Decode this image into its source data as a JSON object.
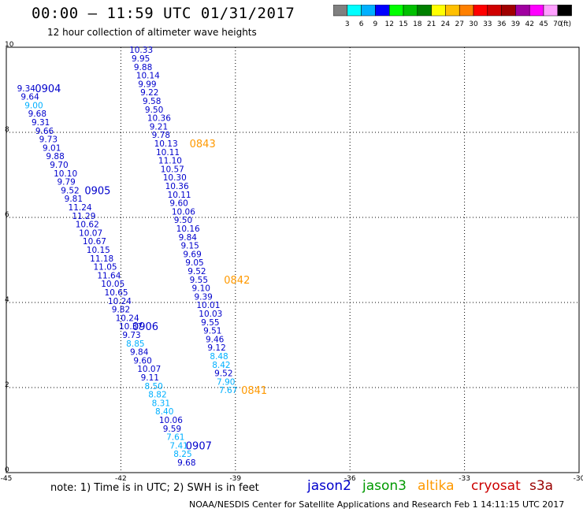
{
  "header": {
    "title": "00:00 – 11:59 UTC 01/31/2017",
    "subtitle": "12 hour collection of altimeter wave heights"
  },
  "colorbar": {
    "labels": [
      "3",
      "6",
      "9",
      "12",
      "15",
      "18",
      "21",
      "24",
      "27",
      "30",
      "33",
      "36",
      "39",
      "42",
      "45",
      "70"
    ],
    "unit": "(ft)",
    "colors": [
      "#808080",
      "#00ffff",
      "#00b0ff",
      "#0000ff",
      "#00ff00",
      "#00c000",
      "#008000",
      "#ffff00",
      "#ffc000",
      "#ff8000",
      "#ff0000",
      "#d00000",
      "#a00000",
      "#a000a0",
      "#ff00ff",
      "#ffa0ff",
      "#000000"
    ]
  },
  "note": "note: 1) Time is in UTC; 2) SWH is in feet",
  "legend": [
    {
      "label": "jason2",
      "color": "#0000cc"
    },
    {
      "label": "jason3",
      "color": "#009900"
    },
    {
      "label": "altika",
      "color": "#ff9900"
    },
    {
      "label": "cryosat",
      "color": "#cc0000"
    },
    {
      "label": "s3a",
      "color": "#990000"
    }
  ],
  "footer": "NOAA/NESDIS Center for Satellite Applications and Research   Feb  1 14:11:15 UTC 2017",
  "chart_data": {
    "type": "scatter",
    "xlim": [
      -45,
      -30
    ],
    "ylim": [
      0,
      10
    ],
    "x_ticks": [
      "-45",
      "-42",
      "-39",
      "-36",
      "-33",
      "-30"
    ],
    "y_ticks": [
      "0",
      "2",
      "4",
      "6",
      "8",
      "10"
    ],
    "grid": true,
    "tracks": [
      {
        "satellite": "jason2",
        "color": "#0000cc",
        "points": [
          {
            "x": -44.72,
            "y": 9.04,
            "v": "9.34",
            "c": "#0000cc"
          },
          {
            "x": -44.62,
            "y": 8.84,
            "v": "9.64",
            "c": "#0000cc"
          },
          {
            "x": -44.52,
            "y": 8.64,
            "v": "9.00",
            "c": "#00b0ff"
          },
          {
            "x": -44.43,
            "y": 8.44,
            "v": "9.68",
            "c": "#0000cc"
          },
          {
            "x": -44.34,
            "y": 8.24,
            "v": "9.31",
            "c": "#0000cc"
          },
          {
            "x": -44.24,
            "y": 8.04,
            "v": "9.66",
            "c": "#0000cc"
          },
          {
            "x": -44.14,
            "y": 7.84,
            "v": "9.73",
            "c": "#0000cc"
          },
          {
            "x": -44.05,
            "y": 7.64,
            "v": "9.01",
            "c": "#0000cc"
          },
          {
            "x": -43.96,
            "y": 7.44,
            "v": "9.88",
            "c": "#0000cc"
          },
          {
            "x": -43.86,
            "y": 7.24,
            "v": "9.70",
            "c": "#0000cc"
          },
          {
            "x": -43.76,
            "y": 7.04,
            "v": "10.10",
            "c": "#0000cc"
          },
          {
            "x": -43.67,
            "y": 6.84,
            "v": "9.79",
            "c": "#0000cc"
          },
          {
            "x": -43.57,
            "y": 6.64,
            "v": "9.52",
            "c": "#0000cc"
          },
          {
            "x": -43.48,
            "y": 6.44,
            "v": "9.81",
            "c": "#0000cc"
          },
          {
            "x": -43.38,
            "y": 6.24,
            "v": "11.24",
            "c": "#0000cc"
          },
          {
            "x": -43.28,
            "y": 6.04,
            "v": "11.29",
            "c": "#0000cc"
          },
          {
            "x": -43.19,
            "y": 5.84,
            "v": "10.62",
            "c": "#0000cc"
          },
          {
            "x": -43.1,
            "y": 5.64,
            "v": "10.07",
            "c": "#0000cc"
          },
          {
            "x": -43.0,
            "y": 5.44,
            "v": "10.67",
            "c": "#0000cc"
          },
          {
            "x": -42.9,
            "y": 5.24,
            "v": "10.15",
            "c": "#0000cc"
          },
          {
            "x": -42.81,
            "y": 5.04,
            "v": "11.18",
            "c": "#0000cc"
          },
          {
            "x": -42.72,
            "y": 4.84,
            "v": "11.05",
            "c": "#0000cc"
          },
          {
            "x": -42.62,
            "y": 4.64,
            "v": "11.64",
            "c": "#0000cc"
          },
          {
            "x": -42.52,
            "y": 4.44,
            "v": "10.05",
            "c": "#0000cc"
          },
          {
            "x": -42.43,
            "y": 4.24,
            "v": "10.65",
            "c": "#0000cc"
          },
          {
            "x": -42.34,
            "y": 4.04,
            "v": "10.24",
            "c": "#0000cc"
          },
          {
            "x": -42.24,
            "y": 3.84,
            "v": "9.82",
            "c": "#0000cc"
          },
          {
            "x": -42.14,
            "y": 3.64,
            "v": "10.24",
            "c": "#0000cc"
          },
          {
            "x": -42.05,
            "y": 3.44,
            "v": "10.37",
            "c": "#0000cc"
          },
          {
            "x": -41.96,
            "y": 3.24,
            "v": "9.73",
            "c": "#0000cc"
          },
          {
            "x": -41.86,
            "y": 3.04,
            "v": "8.85",
            "c": "#00b0ff"
          },
          {
            "x": -41.76,
            "y": 2.84,
            "v": "9.84",
            "c": "#0000cc"
          },
          {
            "x": -41.67,
            "y": 2.64,
            "v": "9.60",
            "c": "#0000cc"
          },
          {
            "x": -41.57,
            "y": 2.44,
            "v": "10.07",
            "c": "#0000cc"
          },
          {
            "x": -41.48,
            "y": 2.24,
            "v": "9.11",
            "c": "#0000cc"
          },
          {
            "x": -41.38,
            "y": 2.04,
            "v": "8.50",
            "c": "#00b0ff"
          },
          {
            "x": -41.28,
            "y": 1.84,
            "v": "8.82",
            "c": "#00b0ff"
          },
          {
            "x": -41.19,
            "y": 1.64,
            "v": "8.31",
            "c": "#00b0ff"
          },
          {
            "x": -41.1,
            "y": 1.44,
            "v": "8.40",
            "c": "#00b0ff"
          },
          {
            "x": -41.0,
            "y": 1.24,
            "v": "10.06",
            "c": "#0000cc"
          },
          {
            "x": -40.9,
            "y": 1.04,
            "v": "9.59",
            "c": "#0000cc"
          },
          {
            "x": -40.81,
            "y": 0.84,
            "v": "7.61",
            "c": "#00b0ff"
          },
          {
            "x": -40.72,
            "y": 0.64,
            "v": "7.41",
            "c": "#00b0ff"
          },
          {
            "x": -40.62,
            "y": 0.44,
            "v": "8.25",
            "c": "#00b0ff"
          },
          {
            "x": -40.52,
            "y": 0.24,
            "v": "9.68",
            "c": "#0000cc"
          }
        ],
        "time_labels": [
          {
            "x": -44.25,
            "y": 9.04,
            "label": "0904"
          },
          {
            "x": -42.95,
            "y": 6.64,
            "label": "0905"
          },
          {
            "x": -41.7,
            "y": 3.44,
            "label": "0906"
          },
          {
            "x": -40.3,
            "y": 0.64,
            "label": "0907"
          }
        ]
      },
      {
        "satellite": "altika",
        "color": "#ff9900",
        "points": [
          {
            "x": -41.78,
            "y": 9.94,
            "v": "10.33",
            "c": "#0000cc"
          },
          {
            "x": -41.72,
            "y": 9.74,
            "v": "9.95",
            "c": "#0000cc"
          },
          {
            "x": -41.66,
            "y": 9.54,
            "v": "9.88",
            "c": "#0000cc"
          },
          {
            "x": -41.6,
            "y": 9.34,
            "v": "10.14",
            "c": "#0000cc"
          },
          {
            "x": -41.55,
            "y": 9.14,
            "v": "9.99",
            "c": "#0000cc"
          },
          {
            "x": -41.49,
            "y": 8.94,
            "v": "9.22",
            "c": "#0000cc"
          },
          {
            "x": -41.43,
            "y": 8.74,
            "v": "9.58",
            "c": "#0000cc"
          },
          {
            "x": -41.37,
            "y": 8.54,
            "v": "9.50",
            "c": "#0000cc"
          },
          {
            "x": -41.31,
            "y": 8.34,
            "v": "10.36",
            "c": "#0000cc"
          },
          {
            "x": -41.25,
            "y": 8.14,
            "v": "9.21",
            "c": "#0000cc"
          },
          {
            "x": -41.19,
            "y": 7.94,
            "v": "9.78",
            "c": "#0000cc"
          },
          {
            "x": -41.13,
            "y": 7.74,
            "v": "10.13",
            "c": "#0000cc"
          },
          {
            "x": -41.08,
            "y": 7.54,
            "v": "10.11",
            "c": "#0000cc"
          },
          {
            "x": -41.02,
            "y": 7.34,
            "v": "11.10",
            "c": "#0000cc"
          },
          {
            "x": -40.96,
            "y": 7.14,
            "v": "10.57",
            "c": "#0000cc"
          },
          {
            "x": -40.9,
            "y": 6.94,
            "v": "10.30",
            "c": "#0000cc"
          },
          {
            "x": -40.84,
            "y": 6.74,
            "v": "10.36",
            "c": "#0000cc"
          },
          {
            "x": -40.78,
            "y": 6.54,
            "v": "10.11",
            "c": "#0000cc"
          },
          {
            "x": -40.72,
            "y": 6.34,
            "v": "9.60",
            "c": "#0000cc"
          },
          {
            "x": -40.67,
            "y": 6.14,
            "v": "10.06",
            "c": "#0000cc"
          },
          {
            "x": -40.61,
            "y": 5.94,
            "v": "9.50",
            "c": "#0000cc"
          },
          {
            "x": -40.55,
            "y": 5.74,
            "v": "10.16",
            "c": "#0000cc"
          },
          {
            "x": -40.49,
            "y": 5.54,
            "v": "9.84",
            "c": "#0000cc"
          },
          {
            "x": -40.43,
            "y": 5.34,
            "v": "9.15",
            "c": "#0000cc"
          },
          {
            "x": -40.37,
            "y": 5.14,
            "v": "9.69",
            "c": "#0000cc"
          },
          {
            "x": -40.31,
            "y": 4.94,
            "v": "9.05",
            "c": "#0000cc"
          },
          {
            "x": -40.25,
            "y": 4.74,
            "v": "9.52",
            "c": "#0000cc"
          },
          {
            "x": -40.2,
            "y": 4.54,
            "v": "9.55",
            "c": "#0000cc"
          },
          {
            "x": -40.14,
            "y": 4.34,
            "v": "9.10",
            "c": "#0000cc"
          },
          {
            "x": -40.08,
            "y": 4.14,
            "v": "9.39",
            "c": "#0000cc"
          },
          {
            "x": -40.02,
            "y": 3.94,
            "v": "10.01",
            "c": "#0000cc"
          },
          {
            "x": -39.96,
            "y": 3.74,
            "v": "10.03",
            "c": "#0000cc"
          },
          {
            "x": -39.9,
            "y": 3.54,
            "v": "9.55",
            "c": "#0000cc"
          },
          {
            "x": -39.84,
            "y": 3.34,
            "v": "9.51",
            "c": "#0000cc"
          },
          {
            "x": -39.78,
            "y": 3.14,
            "v": "9.46",
            "c": "#0000cc"
          },
          {
            "x": -39.73,
            "y": 2.94,
            "v": "9.12",
            "c": "#0000cc"
          },
          {
            "x": -39.67,
            "y": 2.74,
            "v": "8.48",
            "c": "#00b0ff"
          },
          {
            "x": -39.61,
            "y": 2.54,
            "v": "8.42",
            "c": "#00b0ff"
          },
          {
            "x": -39.55,
            "y": 2.34,
            "v": "9.52",
            "c": "#0000cc"
          },
          {
            "x": -39.49,
            "y": 2.14,
            "v": "7.90",
            "c": "#00b0ff"
          },
          {
            "x": -39.43,
            "y": 1.94,
            "v": "7.67",
            "c": "#00b0ff"
          }
        ],
        "time_labels": [
          {
            "x": -40.2,
            "y": 7.74,
            "label": "0843"
          },
          {
            "x": -39.3,
            "y": 4.54,
            "label": "0842"
          },
          {
            "x": -38.85,
            "y": 1.94,
            "label": "0841"
          }
        ]
      }
    ]
  }
}
